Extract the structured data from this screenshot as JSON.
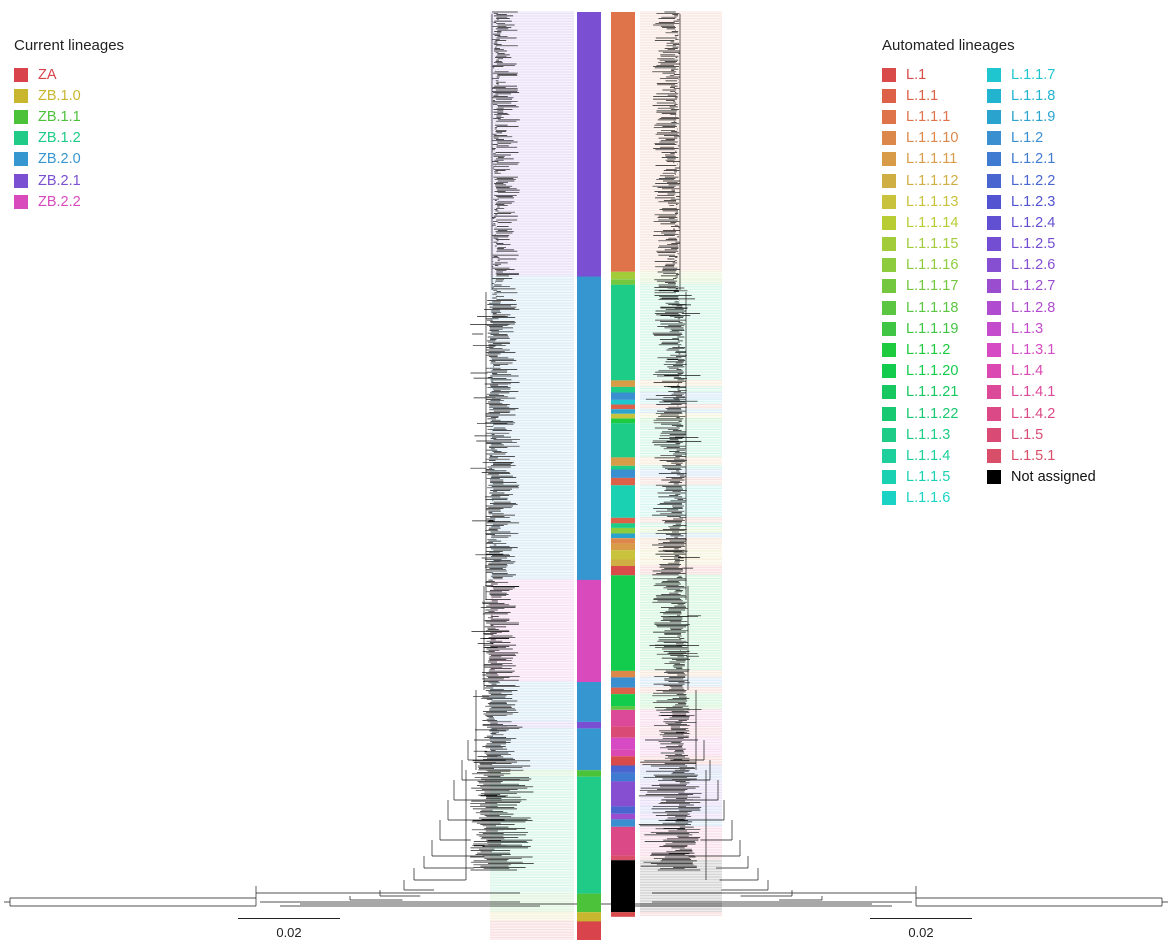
{
  "legend_current": {
    "title": "Current lineages",
    "items": [
      {
        "label": "ZA",
        "color": "#d9434b"
      },
      {
        "label": "ZB.1.0",
        "color": "#c8b62f"
      },
      {
        "label": "ZB.1.1",
        "color": "#4cc13a"
      },
      {
        "label": "ZB.1.2",
        "color": "#1fcb86"
      },
      {
        "label": "ZB.2.0",
        "color": "#3696d0"
      },
      {
        "label": "ZB.2.1",
        "color": "#7a4fd1"
      },
      {
        "label": "ZB.2.2",
        "color": "#d94bbd"
      }
    ]
  },
  "legend_automated": {
    "title": "Automated lineages",
    "items": [
      {
        "label": "L.1",
        "color": "#d94a4a"
      },
      {
        "label": "L.1.1",
        "color": "#dc6148"
      },
      {
        "label": "L.1.1.1",
        "color": "#df744b"
      },
      {
        "label": "L.1.1.10",
        "color": "#dc884a"
      },
      {
        "label": "L.1.1.11",
        "color": "#d89c48"
      },
      {
        "label": "L.1.1.12",
        "color": "#cfae44"
      },
      {
        "label": "L.1.1.13",
        "color": "#c8c23d"
      },
      {
        "label": "L.1.1.14",
        "color": "#b8cc34"
      },
      {
        "label": "L.1.1.15",
        "color": "#a3cc3a"
      },
      {
        "label": "L.1.1.16",
        "color": "#8ccc3e"
      },
      {
        "label": "L.1.1.17",
        "color": "#73c83f"
      },
      {
        "label": "L.1.1.18",
        "color": "#5ac642"
      },
      {
        "label": "L.1.1.19",
        "color": "#41c544"
      },
      {
        "label": "L.1.1.2",
        "color": "#1ecb3e"
      },
      {
        "label": "L.1.1.20",
        "color": "#13cc4d"
      },
      {
        "label": "L.1.1.21",
        "color": "#16c85f"
      },
      {
        "label": "L.1.1.22",
        "color": "#19c971"
      },
      {
        "label": "L.1.1.3",
        "color": "#1dcc86"
      },
      {
        "label": "L.1.1.4",
        "color": "#1ccf9b"
      },
      {
        "label": "L.1.1.5",
        "color": "#1ad1b1"
      },
      {
        "label": "L.1.1.6",
        "color": "#1bd3c4"
      },
      {
        "label": "L.1.1.7",
        "color": "#1fc6cf"
      },
      {
        "label": "L.1.1.8",
        "color": "#22b3cf"
      },
      {
        "label": "L.1.1.9",
        "color": "#2aa3cf"
      },
      {
        "label": "L.1.2",
        "color": "#3a8fd0"
      },
      {
        "label": "L.1.2.1",
        "color": "#3f7bd0"
      },
      {
        "label": "L.1.2.2",
        "color": "#4865d0"
      },
      {
        "label": "L.1.2.3",
        "color": "#5253d1"
      },
      {
        "label": "L.1.2.4",
        "color": "#6150d2"
      },
      {
        "label": "L.1.2.5",
        "color": "#734ed2"
      },
      {
        "label": "L.1.2.6",
        "color": "#864fd2"
      },
      {
        "label": "L.1.2.7",
        "color": "#9b4dd0"
      },
      {
        "label": "L.1.2.8",
        "color": "#b04ccf"
      },
      {
        "label": "L.1.3",
        "color": "#c44ccc"
      },
      {
        "label": "L.1.3.1",
        "color": "#d64bc4"
      },
      {
        "label": "L.1.4",
        "color": "#dc48b2"
      },
      {
        "label": "L.1.4.1",
        "color": "#dc4999"
      },
      {
        "label": "L.1.4.2",
        "color": "#db4a87"
      },
      {
        "label": "L.1.5",
        "color": "#d94b74"
      },
      {
        "label": "L.1.5.1",
        "color": "#d94e68"
      },
      {
        "label": "Not assigned",
        "color": "#000000",
        "text_color": "#111111"
      }
    ]
  },
  "tree": {
    "current_bands": [
      {
        "lineage": "ZB.2.1",
        "from": 0.0,
        "to": 0.285
      },
      {
        "lineage": "ZB.2.0",
        "from": 0.285,
        "to": 0.612
      },
      {
        "lineage": "ZB.2.2",
        "from": 0.612,
        "to": 0.722
      },
      {
        "lineage": "ZB.2.0",
        "from": 0.722,
        "to": 0.765
      },
      {
        "lineage": "ZB.2.1",
        "from": 0.765,
        "to": 0.772
      },
      {
        "lineage": "ZB.2.0",
        "from": 0.772,
        "to": 0.817
      },
      {
        "lineage": "ZB.1.1",
        "from": 0.817,
        "to": 0.824
      },
      {
        "lineage": "ZB.1.2",
        "from": 0.824,
        "to": 0.95
      },
      {
        "lineage": "ZB.1.1",
        "from": 0.95,
        "to": 0.97
      },
      {
        "lineage": "ZB.1.0",
        "from": 0.97,
        "to": 0.98
      },
      {
        "lineage": "ZA",
        "from": 0.98,
        "to": 1.0
      }
    ],
    "automated_bands": [
      {
        "lineage": "L.1.1.1",
        "from": 0.0,
        "to": 0.28
      },
      {
        "lineage": "L.1.1.15",
        "from": 0.28,
        "to": 0.288
      },
      {
        "lineage": "L.1.1.17",
        "from": 0.288,
        "to": 0.294
      },
      {
        "lineage": "L.1.1.3",
        "from": 0.294,
        "to": 0.397
      },
      {
        "lineage": "L.1.1.11",
        "from": 0.397,
        "to": 0.404
      },
      {
        "lineage": "L.1.1.3",
        "from": 0.404,
        "to": 0.41
      },
      {
        "lineage": "L.1.2",
        "from": 0.41,
        "to": 0.418
      },
      {
        "lineage": "L.1.1.7",
        "from": 0.418,
        "to": 0.423
      },
      {
        "lineage": "L.1.1",
        "from": 0.423,
        "to": 0.428
      },
      {
        "lineage": "L.1.1.9",
        "from": 0.428,
        "to": 0.433
      },
      {
        "lineage": "L.1.1.13",
        "from": 0.433,
        "to": 0.438
      },
      {
        "lineage": "L.1.1.2",
        "from": 0.438,
        "to": 0.443
      },
      {
        "lineage": "L.1.1.3",
        "from": 0.443,
        "to": 0.48
      },
      {
        "lineage": "L.1.1.11",
        "from": 0.48,
        "to": 0.489
      },
      {
        "lineage": "L.1.1.3",
        "from": 0.489,
        "to": 0.493
      },
      {
        "lineage": "L.1.2",
        "from": 0.493,
        "to": 0.502
      },
      {
        "lineage": "L.1.1",
        "from": 0.502,
        "to": 0.51
      },
      {
        "lineage": "L.1.1.5",
        "from": 0.51,
        "to": 0.545
      },
      {
        "lineage": "L.1.1",
        "from": 0.545,
        "to": 0.551
      },
      {
        "lineage": "L.1.1.3",
        "from": 0.551,
        "to": 0.556
      },
      {
        "lineage": "L.1.1.16",
        "from": 0.556,
        "to": 0.562
      },
      {
        "lineage": "L.1.1.9",
        "from": 0.562,
        "to": 0.567
      },
      {
        "lineage": "L.1.1.10",
        "from": 0.567,
        "to": 0.573
      },
      {
        "lineage": "L.1.1.11",
        "from": 0.573,
        "to": 0.58
      },
      {
        "lineage": "L.1.1.13",
        "from": 0.58,
        "to": 0.59
      },
      {
        "lineage": "L.1.1.12",
        "from": 0.59,
        "to": 0.597
      },
      {
        "lineage": "L.1",
        "from": 0.597,
        "to": 0.607
      },
      {
        "lineage": "L.1.1.20",
        "from": 0.607,
        "to": 0.71
      },
      {
        "lineage": "L.1.1.10",
        "from": 0.71,
        "to": 0.717
      },
      {
        "lineage": "L.1.2",
        "from": 0.717,
        "to": 0.728
      },
      {
        "lineage": "L.1.1",
        "from": 0.728,
        "to": 0.735
      },
      {
        "lineage": "L.1.1.20",
        "from": 0.735,
        "to": 0.748
      },
      {
        "lineage": "L.1.1.18",
        "from": 0.748,
        "to": 0.752
      },
      {
        "lineage": "L.1.4.1",
        "from": 0.752,
        "to": 0.77
      },
      {
        "lineage": "L.1.5",
        "from": 0.77,
        "to": 0.782
      },
      {
        "lineage": "L.1.3.1",
        "from": 0.782,
        "to": 0.795
      },
      {
        "lineage": "L.1.4",
        "from": 0.795,
        "to": 0.802
      },
      {
        "lineage": "L.1",
        "from": 0.802,
        "to": 0.812
      },
      {
        "lineage": "L.1.2.2",
        "from": 0.812,
        "to": 0.82
      },
      {
        "lineage": "L.1.2.1",
        "from": 0.82,
        "to": 0.829
      },
      {
        "lineage": "L.1.2.6",
        "from": 0.829,
        "to": 0.856
      },
      {
        "lineage": "L.1.2.2",
        "from": 0.856,
        "to": 0.864
      },
      {
        "lineage": "L.1.2.7",
        "from": 0.864,
        "to": 0.87
      },
      {
        "lineage": "L.1.2",
        "from": 0.87,
        "to": 0.878
      },
      {
        "lineage": "L.1.4.2",
        "from": 0.878,
        "to": 0.909
      },
      {
        "lineage": "L.1.5.1",
        "from": 0.909,
        "to": 0.914
      },
      {
        "lineage": "Not assigned",
        "from": 0.914,
        "to": 0.97
      },
      {
        "lineage": "L.1",
        "from": 0.97,
        "to": 0.975
      }
    ]
  },
  "scale_left": {
    "label": "0.02"
  },
  "scale_right": {
    "label": "0.02"
  }
}
